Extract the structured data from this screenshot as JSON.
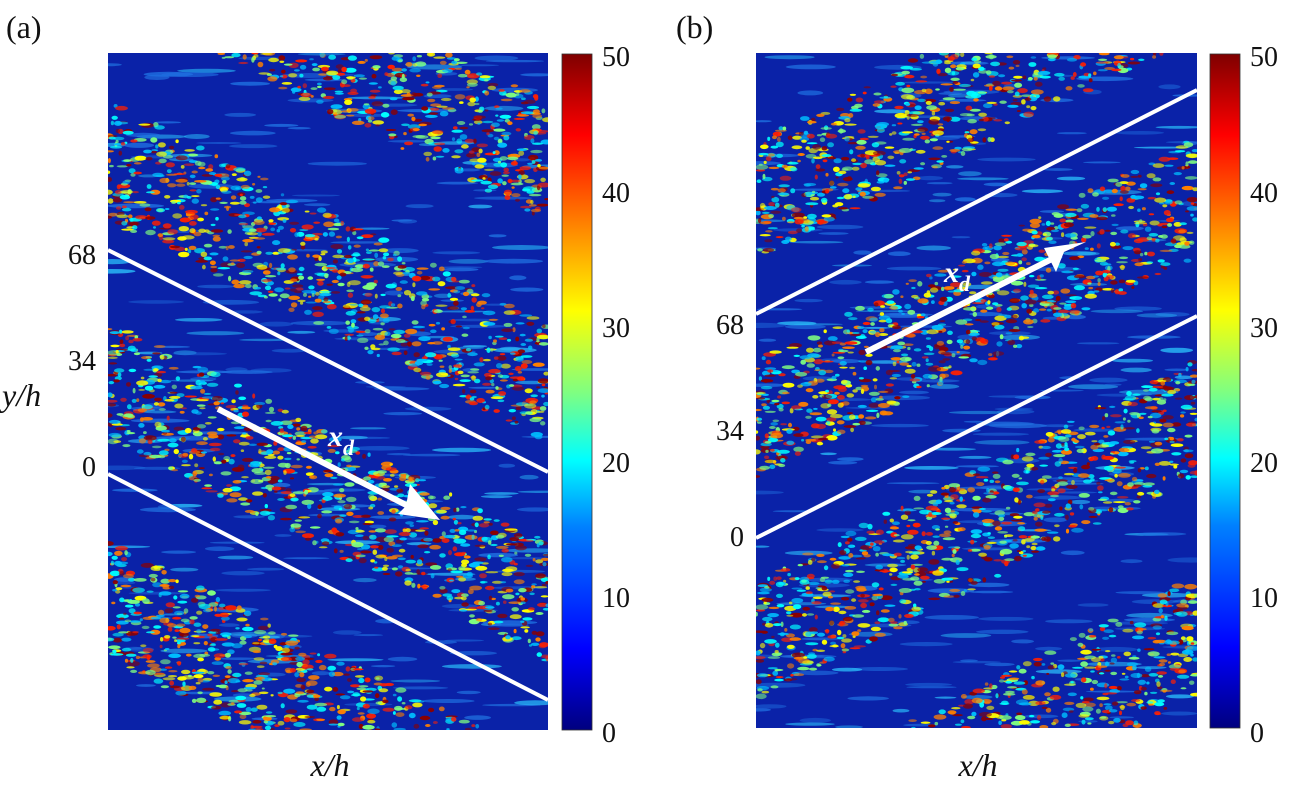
{
  "chart_data": [
    {
      "type": "heatmap",
      "panel_label": "(a)",
      "xlabel": "x/h",
      "ylabel": "y/h",
      "y_ticks": [
        "68",
        "34",
        "0"
      ],
      "colorbar": {
        "ticks": [
          "50",
          "40",
          "30",
          "20",
          "10",
          "0"
        ],
        "range": [
          0,
          50
        ]
      },
      "band_tilt": "down-right",
      "annotation": {
        "text": "x",
        "subscript": "d"
      }
    },
    {
      "type": "heatmap",
      "panel_label": "(b)",
      "xlabel": "x/h",
      "ylabel": "",
      "y_ticks": [
        "68",
        "34",
        "0"
      ],
      "colorbar": {
        "ticks": [
          "50",
          "40",
          "30",
          "20",
          "10",
          "0"
        ],
        "range": [
          0,
          50
        ]
      },
      "band_tilt": "up-right",
      "annotation": {
        "text": "x",
        "subscript": "d"
      }
    }
  ],
  "colors": {
    "background_field": "#0a22a8",
    "stripe": "#2a9df4",
    "colormap": [
      "#00007f",
      "#0000ff",
      "#0080ff",
      "#00ffff",
      "#80ff80",
      "#ffff00",
      "#ff8000",
      "#ff0000",
      "#7f0000"
    ],
    "line": "#ffffff"
  }
}
